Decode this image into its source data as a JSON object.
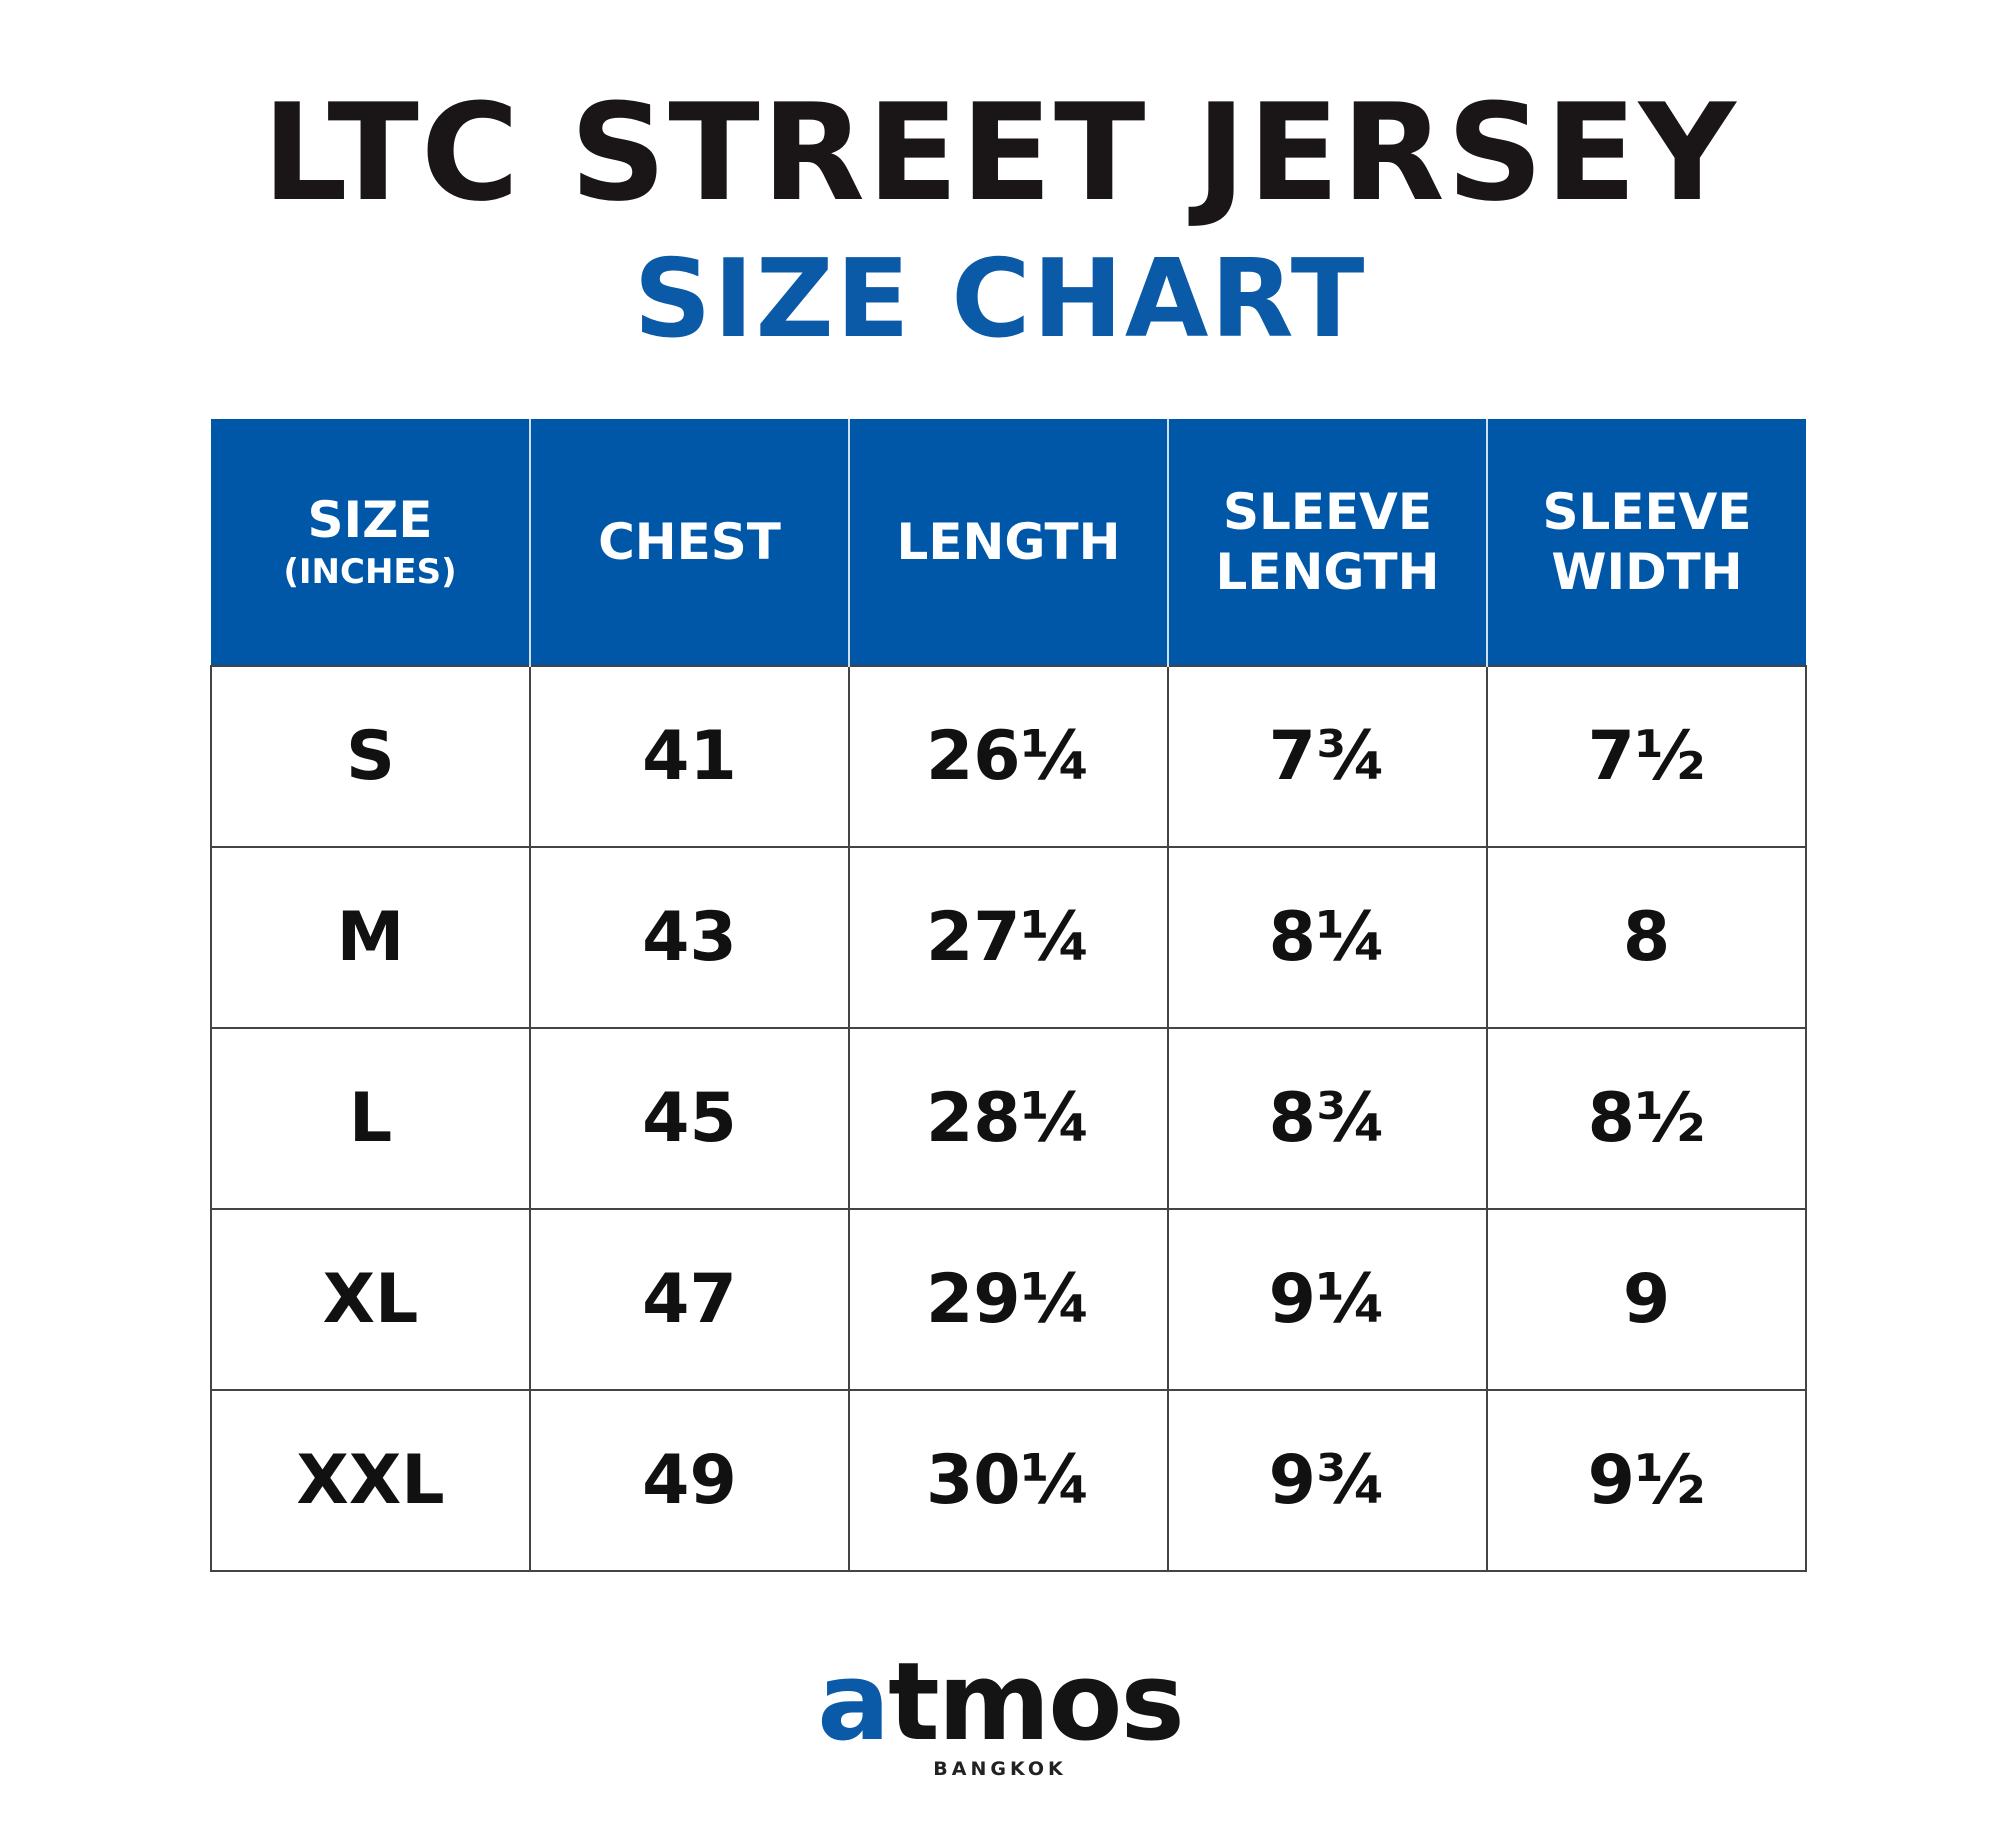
{
  "header": {
    "title": "LTC STREET JERSEY",
    "subtitle": "SIZE CHART"
  },
  "table": {
    "columns": [
      {
        "lines": [
          "SIZE"
        ],
        "note": "(INCHES)"
      },
      {
        "lines": [
          "CHEST"
        ]
      },
      {
        "lines": [
          "LENGTH"
        ]
      },
      {
        "lines": [
          "SLEEVE",
          "LENGTH"
        ]
      },
      {
        "lines": [
          "SLEEVE",
          "WIDTH"
        ]
      }
    ],
    "rows": [
      [
        "S",
        "41",
        "26¼",
        "7¾",
        "7½"
      ],
      [
        "M",
        "43",
        "27¼",
        "8¼",
        "8"
      ],
      [
        "L",
        "45",
        "28¼",
        "8¾",
        "8½"
      ],
      [
        "XL",
        "47",
        "29¼",
        "9¼",
        "9"
      ],
      [
        "XXL",
        "49",
        "30¼",
        "9¾",
        "9½"
      ]
    ]
  },
  "footer": {
    "brand": "atmos",
    "location": "BANGKOK"
  }
}
